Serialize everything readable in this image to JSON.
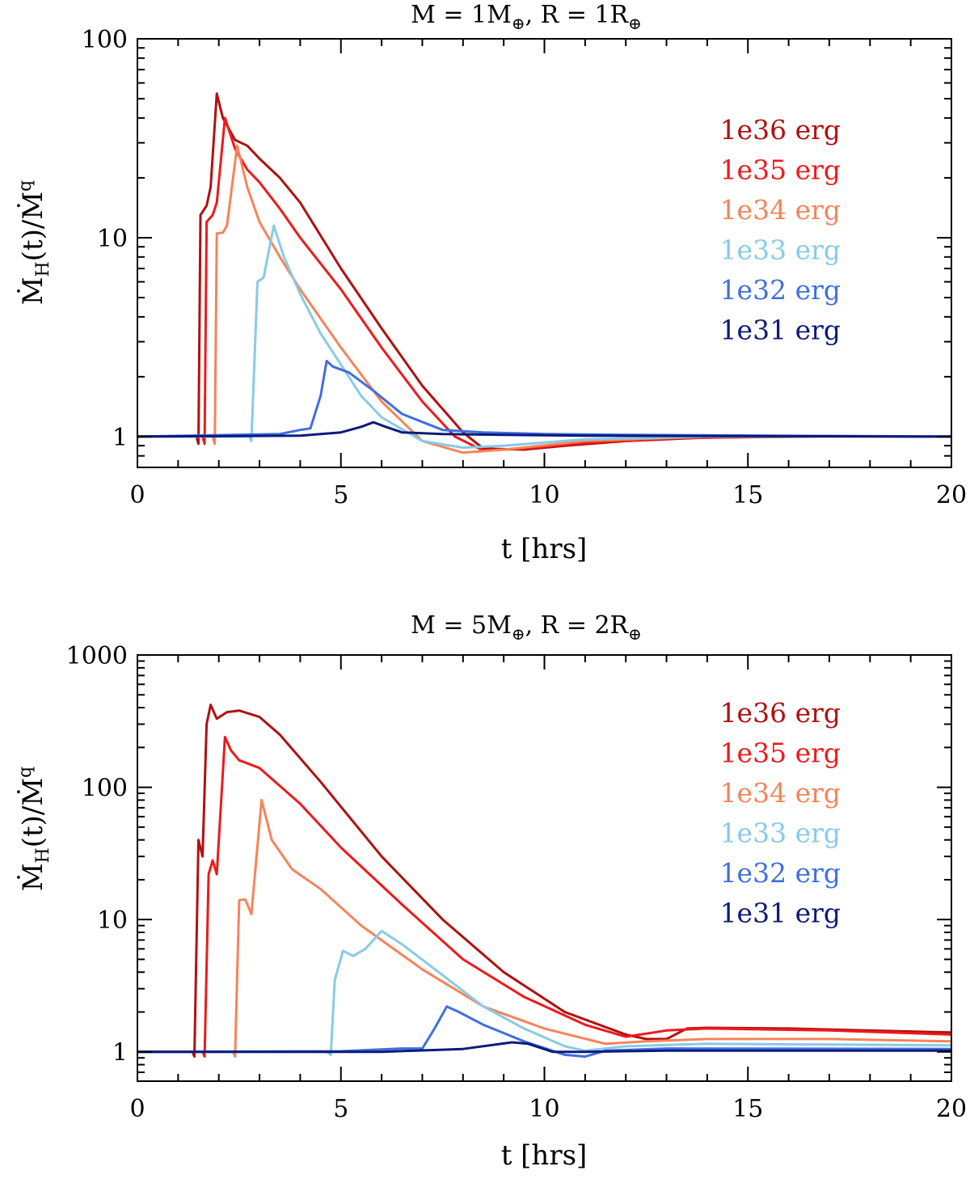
{
  "chart_data": [
    {
      "type": "line",
      "title": "M = 1M⊕, R = 1R⊕",
      "xlabel": "t [hrs]",
      "ylabel": "Ṁ_H(t)/Ṁ^q",
      "xlim": [
        0,
        20
      ],
      "ylim": [
        0.7,
        100
      ],
      "yscale": "log",
      "x_ticks": [
        "0",
        "5",
        "10",
        "15",
        "20"
      ],
      "y_ticks": [
        "1",
        "10",
        "100"
      ],
      "legend_position": "top-right",
      "series": [
        {
          "name": "1e36 erg",
          "color": "#b21010",
          "points": [
            [
              0,
              1
            ],
            [
              1.45,
              1
            ],
            [
              1.5,
              0.92
            ],
            [
              1.55,
              13
            ],
            [
              1.7,
              14.5
            ],
            [
              1.8,
              18
            ],
            [
              1.95,
              53
            ],
            [
              2.1,
              40
            ],
            [
              2.4,
              31
            ],
            [
              2.7,
              29
            ],
            [
              3,
              25
            ],
            [
              3.5,
              20
            ],
            [
              4,
              15
            ],
            [
              5,
              7
            ],
            [
              6,
              3.5
            ],
            [
              7,
              1.8
            ],
            [
              8,
              1.05
            ],
            [
              8.5,
              0.87
            ],
            [
              9.5,
              0.86
            ],
            [
              10.5,
              0.9
            ],
            [
              12,
              0.95
            ],
            [
              14,
              0.99
            ],
            [
              17,
              1
            ],
            [
              20,
              1
            ]
          ]
        },
        {
          "name": "1e35 erg",
          "color": "#ee1a1a",
          "points": [
            [
              0,
              1
            ],
            [
              1.6,
              1
            ],
            [
              1.65,
              0.92
            ],
            [
              1.7,
              12
            ],
            [
              1.85,
              13
            ],
            [
              1.95,
              15
            ],
            [
              2.15,
              40
            ],
            [
              2.4,
              28
            ],
            [
              2.7,
              22
            ],
            [
              3,
              19
            ],
            [
              3.5,
              14
            ],
            [
              4,
              10
            ],
            [
              5,
              5.5
            ],
            [
              6,
              2.8
            ],
            [
              7,
              1.5
            ],
            [
              7.8,
              1
            ],
            [
              8.5,
              0.85
            ],
            [
              9.5,
              0.87
            ],
            [
              11,
              0.93
            ],
            [
              13,
              0.98
            ],
            [
              16,
              1
            ],
            [
              20,
              1
            ]
          ]
        },
        {
          "name": "1e34 erg",
          "color": "#f5845a",
          "points": [
            [
              0,
              1
            ],
            [
              1.85,
              1
            ],
            [
              1.9,
              0.92
            ],
            [
              1.95,
              10.5
            ],
            [
              2.1,
              10.6
            ],
            [
              2.2,
              11.5
            ],
            [
              2.45,
              29
            ],
            [
              2.7,
              18
            ],
            [
              3,
              12
            ],
            [
              3.5,
              8
            ],
            [
              4,
              5.5
            ],
            [
              5,
              2.8
            ],
            [
              6,
              1.5
            ],
            [
              7,
              0.95
            ],
            [
              8,
              0.83
            ],
            [
              9,
              0.86
            ],
            [
              11,
              0.95
            ],
            [
              14,
              1
            ],
            [
              20,
              1
            ]
          ]
        },
        {
          "name": "1e33 erg",
          "color": "#87cbe8",
          "points": [
            [
              0,
              1
            ],
            [
              2.75,
              1
            ],
            [
              2.8,
              0.95
            ],
            [
              2.95,
              6
            ],
            [
              3.1,
              6.3
            ],
            [
              3.2,
              8
            ],
            [
              3.35,
              11.5
            ],
            [
              3.6,
              8
            ],
            [
              4,
              5.2
            ],
            [
              4.5,
              3.3
            ],
            [
              5,
              2.3
            ],
            [
              5.5,
              1.6
            ],
            [
              6,
              1.25
            ],
            [
              7,
              0.95
            ],
            [
              8,
              0.88
            ],
            [
              9,
              0.9
            ],
            [
              11,
              0.97
            ],
            [
              14,
              1
            ],
            [
              20,
              1
            ]
          ]
        },
        {
          "name": "1e32 erg",
          "color": "#3f6fe0",
          "points": [
            [
              0,
              1
            ],
            [
              3.5,
              1.03
            ],
            [
              4,
              1.08
            ],
            [
              4.25,
              1.1
            ],
            [
              4.5,
              1.6
            ],
            [
              4.65,
              2.4
            ],
            [
              4.8,
              2.25
            ],
            [
              5.2,
              2.1
            ],
            [
              5.8,
              1.7
            ],
            [
              6.5,
              1.3
            ],
            [
              7.5,
              1.08
            ],
            [
              8.5,
              1.05
            ],
            [
              10,
              1.03
            ],
            [
              12,
              1.02
            ],
            [
              20,
              1
            ]
          ]
        },
        {
          "name": "1e31 erg",
          "color": "#0c1a7a",
          "points": [
            [
              0,
              1
            ],
            [
              4,
              1.01
            ],
            [
              5,
              1.05
            ],
            [
              5.5,
              1.12
            ],
            [
              5.8,
              1.18
            ],
            [
              6.1,
              1.12
            ],
            [
              6.5,
              1.05
            ],
            [
              7.5,
              1.03
            ],
            [
              9,
              1.02
            ],
            [
              11,
              1.01
            ],
            [
              20,
              1
            ]
          ]
        }
      ]
    },
    {
      "type": "line",
      "title": "M = 5M⊕, R = 2R⊕",
      "xlabel": "t [hrs]",
      "ylabel": "Ṁ_H(t)/Ṁ^q",
      "xlim": [
        0,
        20
      ],
      "ylim": [
        0.6,
        1000
      ],
      "yscale": "log",
      "x_ticks": [
        "0",
        "5",
        "10",
        "15",
        "20"
      ],
      "y_ticks": [
        "1",
        "10",
        "100",
        "1000"
      ],
      "legend_position": "top-right",
      "series": [
        {
          "name": "1e36 erg",
          "color": "#b21010",
          "points": [
            [
              0,
              1
            ],
            [
              1.35,
              1
            ],
            [
              1.4,
              0.92
            ],
            [
              1.5,
              40
            ],
            [
              1.6,
              30
            ],
            [
              1.7,
              300
            ],
            [
              1.8,
              420
            ],
            [
              1.95,
              330
            ],
            [
              2.2,
              370
            ],
            [
              2.5,
              380
            ],
            [
              3,
              340
            ],
            [
              3.5,
              250
            ],
            [
              4.5,
              110
            ],
            [
              6,
              30
            ],
            [
              7.5,
              10
            ],
            [
              9,
              4
            ],
            [
              10.5,
              2
            ],
            [
              12,
              1.35
            ],
            [
              12.5,
              1.25
            ],
            [
              13,
              1.25
            ],
            [
              13.5,
              1.5
            ],
            [
              14,
              1.52
            ],
            [
              16,
              1.5
            ],
            [
              20,
              1.4
            ]
          ]
        },
        {
          "name": "1e35 erg",
          "color": "#ee1a1a",
          "points": [
            [
              0,
              1
            ],
            [
              1.6,
              1
            ],
            [
              1.65,
              0.92
            ],
            [
              1.75,
              22
            ],
            [
              1.85,
              28
            ],
            [
              1.95,
              22
            ],
            [
              2.15,
              240
            ],
            [
              2.3,
              190
            ],
            [
              2.5,
              160
            ],
            [
              3,
              140
            ],
            [
              4,
              75
            ],
            [
              5,
              35
            ],
            [
              6.5,
              13
            ],
            [
              8,
              5
            ],
            [
              9.5,
              2.6
            ],
            [
              11,
              1.6
            ],
            [
              12,
              1.3
            ],
            [
              13,
              1.45
            ],
            [
              14,
              1.5
            ],
            [
              17,
              1.45
            ],
            [
              20,
              1.35
            ]
          ]
        },
        {
          "name": "1e34 erg",
          "color": "#f5845a",
          "points": [
            [
              0,
              1
            ],
            [
              2.35,
              1
            ],
            [
              2.4,
              0.92
            ],
            [
              2.5,
              14
            ],
            [
              2.65,
              14.2
            ],
            [
              2.8,
              11
            ],
            [
              3.05,
              80
            ],
            [
              3.3,
              40
            ],
            [
              3.8,
              24
            ],
            [
              4.5,
              17
            ],
            [
              5.5,
              9
            ],
            [
              7,
              4.2
            ],
            [
              8.5,
              2.2
            ],
            [
              10,
              1.5
            ],
            [
              11.5,
              1.15
            ],
            [
              12.5,
              1.2
            ],
            [
              14,
              1.25
            ],
            [
              17,
              1.25
            ],
            [
              20,
              1.2
            ]
          ]
        },
        {
          "name": "1e33 erg",
          "color": "#87cbe8",
          "points": [
            [
              0,
              1
            ],
            [
              4.65,
              1
            ],
            [
              4.75,
              0.95
            ],
            [
              4.85,
              3.5
            ],
            [
              5.05,
              5.8
            ],
            [
              5.3,
              5.3
            ],
            [
              5.6,
              6
            ],
            [
              6,
              8.2
            ],
            [
              6.5,
              6.5
            ],
            [
              7.5,
              3.8
            ],
            [
              8.5,
              2.2
            ],
            [
              9.5,
              1.5
            ],
            [
              10.5,
              1.1
            ],
            [
              11,
              1.02
            ],
            [
              12,
              1.1
            ],
            [
              14,
              1.15
            ],
            [
              20,
              1.12
            ]
          ]
        },
        {
          "name": "1e32 erg",
          "color": "#3f6fe0",
          "points": [
            [
              0,
              1
            ],
            [
              5,
              1.01
            ],
            [
              6.5,
              1.06
            ],
            [
              7,
              1.06
            ],
            [
              7.3,
              1.5
            ],
            [
              7.6,
              2.2
            ],
            [
              7.9,
              2
            ],
            [
              8.5,
              1.6
            ],
            [
              9.5,
              1.2
            ],
            [
              10.5,
              0.95
            ],
            [
              11,
              0.92
            ],
            [
              11.5,
              1.02
            ],
            [
              13,
              1.06
            ],
            [
              20,
              1.05
            ]
          ]
        },
        {
          "name": "1e31 erg",
          "color": "#0c1a7a",
          "points": [
            [
              0,
              1
            ],
            [
              6,
              1
            ],
            [
              8,
              1.05
            ],
            [
              9.2,
              1.18
            ],
            [
              9.6,
              1.15
            ],
            [
              10.2,
              1
            ],
            [
              11,
              1
            ],
            [
              13,
              1.02
            ],
            [
              20,
              1.02
            ]
          ]
        }
      ]
    }
  ]
}
